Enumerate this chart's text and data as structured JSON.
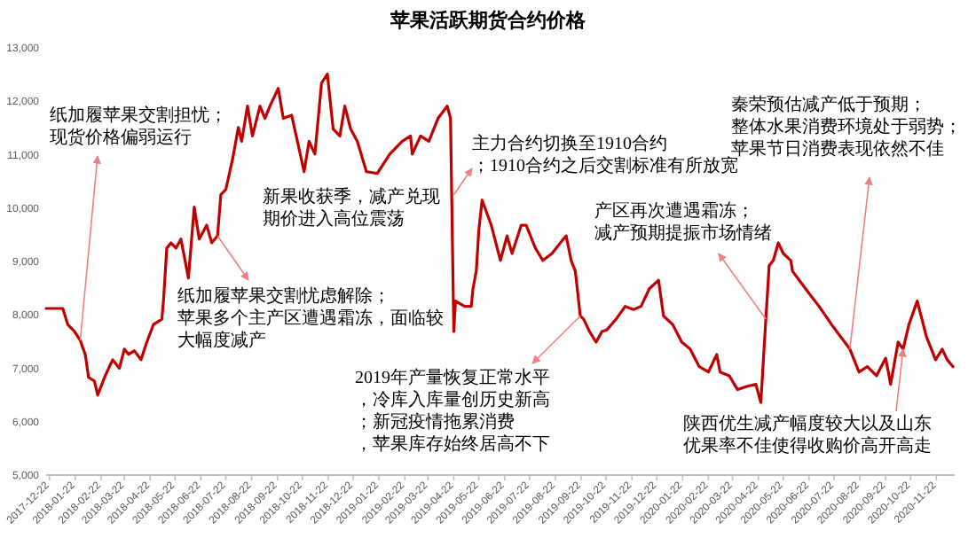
{
  "chart_data": {
    "type": "line",
    "title": "苹果活跃期货合约价格",
    "color": "#c00000",
    "xlim": [
      "2017-12-18",
      "2020-12-14"
    ],
    "ylim": [
      5000,
      13000
    ],
    "yticks": [
      {
        "value": 5000,
        "label": "5,000"
      },
      {
        "value": 6000,
        "label": "6,000"
      },
      {
        "value": 7000,
        "label": "7,000"
      },
      {
        "value": 8000,
        "label": "8,000"
      },
      {
        "value": 9000,
        "label": "9,000"
      },
      {
        "value": 10000,
        "label": "10,000"
      },
      {
        "value": 11000,
        "label": "11,000"
      },
      {
        "value": 12000,
        "label": "12,000"
      },
      {
        "value": 13000,
        "label": "13,000"
      }
    ],
    "xticks": [
      "2017-12-22",
      "2018-01-22",
      "2018-02-22",
      "2018-03-22",
      "2018-04-22",
      "2018-05-22",
      "2018-06-22",
      "2018-07-22",
      "2018-08-22",
      "2018-09-22",
      "2018-10-22",
      "2018-11-22",
      "2018-12-22",
      "2019-01-22",
      "2019-02-22",
      "2019-03-22",
      "2019-04-22",
      "2019-05-22",
      "2019-06-22",
      "2019-07-22",
      "2019-08-22",
      "2019-09-22",
      "2019-10-22",
      "2019-11-22",
      "2019-12-22",
      "2020-01-22",
      "2020-02-22",
      "2020-03-22",
      "2020-04-22",
      "2020-05-22",
      "2020-06-22",
      "2020-07-22",
      "2020-08-22",
      "2020-09-22",
      "2020-10-22",
      "2020-11-22"
    ],
    "x": [
      "2017-12-18",
      "2018-01-07",
      "2018-01-13",
      "2018-01-21",
      "2018-01-28",
      "2018-02-03",
      "2018-02-07",
      "2018-02-14",
      "2018-02-18",
      "2018-02-27",
      "2018-03-08",
      "2018-03-16",
      "2018-03-22",
      "2018-03-27",
      "2018-04-03",
      "2018-04-11",
      "2018-04-18",
      "2018-04-26",
      "2018-05-06",
      "2018-05-08",
      "2018-05-12",
      "2018-05-17",
      "2018-05-23",
      "2018-05-29",
      "2018-06-07",
      "2018-06-14",
      "2018-06-20",
      "2018-06-29",
      "2018-07-05",
      "2018-07-12",
      "2018-07-16",
      "2018-07-22",
      "2018-07-30",
      "2018-08-06",
      "2018-08-10",
      "2018-08-17",
      "2018-08-23",
      "2018-09-01",
      "2018-09-07",
      "2018-09-13",
      "2018-09-23",
      "2018-09-29",
      "2018-10-09",
      "2018-10-16",
      "2018-10-24",
      "2018-10-30",
      "2018-11-06",
      "2018-11-14",
      "2018-11-21",
      "2018-11-28",
      "2018-12-06",
      "2018-12-12",
      "2018-12-19",
      "2018-12-27",
      "2019-01-07",
      "2019-01-20",
      "2019-02-04",
      "2019-02-19",
      "2019-03-01",
      "2019-03-03",
      "2019-03-13",
      "2019-03-23",
      "2019-04-03",
      "2019-04-14",
      "2019-04-18",
      "2019-04-22",
      "2019-04-24",
      "2019-05-05",
      "2019-05-13",
      "2019-05-15",
      "2019-05-19",
      "2019-05-22",
      "2019-05-26",
      "2019-06-06",
      "2019-06-17",
      "2019-06-25",
      "2019-07-01",
      "2019-07-12",
      "2019-07-18",
      "2019-07-29",
      "2019-08-07",
      "2019-08-18",
      "2019-08-28",
      "2019-09-04",
      "2019-09-10",
      "2019-09-15",
      "2019-09-21",
      "2019-09-25",
      "2019-10-02",
      "2019-10-10",
      "2019-10-17",
      "2019-10-23",
      "2019-11-03",
      "2019-11-14",
      "2019-11-24",
      "2019-12-03",
      "2019-12-13",
      "2019-12-24",
      "2019-12-30",
      "2020-01-10",
      "2020-01-21",
      "2020-01-31",
      "2020-02-11",
      "2020-02-22",
      "2020-03-03",
      "2020-03-07",
      "2020-03-18",
      "2020-03-28",
      "2020-04-08",
      "2020-04-19",
      "2020-04-25",
      "2020-05-01",
      "2020-05-05",
      "2020-05-10",
      "2020-05-16",
      "2020-05-22",
      "2020-05-31",
      "2020-06-02",
      "2020-06-13",
      "2020-06-24",
      "2020-07-04",
      "2020-07-19",
      "2020-07-30",
      "2020-08-10",
      "2020-08-21",
      "2020-08-31",
      "2020-09-11",
      "2020-09-22",
      "2020-09-28",
      "2020-10-07",
      "2020-10-13",
      "2020-10-20",
      "2020-10-30",
      "2020-11-10",
      "2020-11-21",
      "2020-11-29",
      "2020-12-05",
      "2020-12-12"
    ],
    "values": [
      8120,
      8120,
      7820,
      7690,
      7520,
      7260,
      6830,
      6760,
      6500,
      6860,
      7160,
      7000,
      7360,
      7260,
      7330,
      7160,
      7490,
      7820,
      7920,
      8260,
      9250,
      9350,
      9250,
      9420,
      8690,
      10020,
      9420,
      9680,
      9350,
      9480,
      10250,
      10350,
      10910,
      11510,
      11250,
      11910,
      11350,
      11910,
      11680,
      11910,
      12240,
      11680,
      11740,
      11250,
      10680,
      11250,
      11010,
      12340,
      12510,
      11480,
      11350,
      11910,
      11480,
      11250,
      10680,
      10650,
      11010,
      11250,
      11350,
      11010,
      11350,
      11250,
      11680,
      11910,
      11680,
      7690,
      8260,
      8160,
      8160,
      8490,
      8820,
      9580,
      10150,
      9680,
      9020,
      9480,
      9150,
      9680,
      9680,
      9250,
      9020,
      9150,
      9350,
      9480,
      9020,
      8820,
      7980,
      7920,
      7690,
      7490,
      7690,
      7720,
      7920,
      8160,
      8100,
      8160,
      8490,
      8650,
      7980,
      7820,
      7490,
      7360,
      7030,
      6930,
      7260,
      6930,
      6860,
      6600,
      6660,
      6700,
      6360,
      7920,
      8920,
      9020,
      9350,
      9150,
      9020,
      8820,
      8590,
      8360,
      8160,
      7820,
      7590,
      7360,
      6930,
      7030,
      6860,
      7190,
      6700,
      7490,
      7360,
      7820,
      8260,
      7590,
      7160,
      7360,
      7160,
      7030
    ],
    "annotations": [
      {
        "text": "纸加履苹果交割担忧；现货价格偏弱运行",
        "x": "2018-01-28",
        "y": 7520
      },
      "新果收获季，减产兑现期价进入高位震荡",
      {
        "text": "纸加履苹果交割忧虑解除；苹果多个主产区遭遇霜冻，面临较大幅度减产",
        "x": "2018-07-12",
        "y": 9480
      },
      {
        "text": "主力合约切换至1910合约；1910合约之后交割标准有所放宽",
        "x": "2019-04-22",
        "y": 10250
      },
      {
        "text": "2019年产量恢复正常水平，冷库入库量创历史新高；新冠疫情拖累消费，苹果库存始终居高不下",
        "x": "2019-09-21",
        "y": 7980
      },
      {
        "text": "产区再次遭遇霜冻；减产预期提振市场情绪",
        "x": "2020-05-01",
        "y": 7920
      },
      {
        "text": "秦荣预估减产低于预期；整体水果消费环境处于弱势；苹果节日消费表现依然不佳",
        "x": "2020-08-10",
        "y": 7360
      },
      {
        "text": "陕西优生减产幅度较大以及山东优果率不佳使得收购价高开高走",
        "x": "2020-10-13",
        "y": 7360
      }
    ]
  }
}
